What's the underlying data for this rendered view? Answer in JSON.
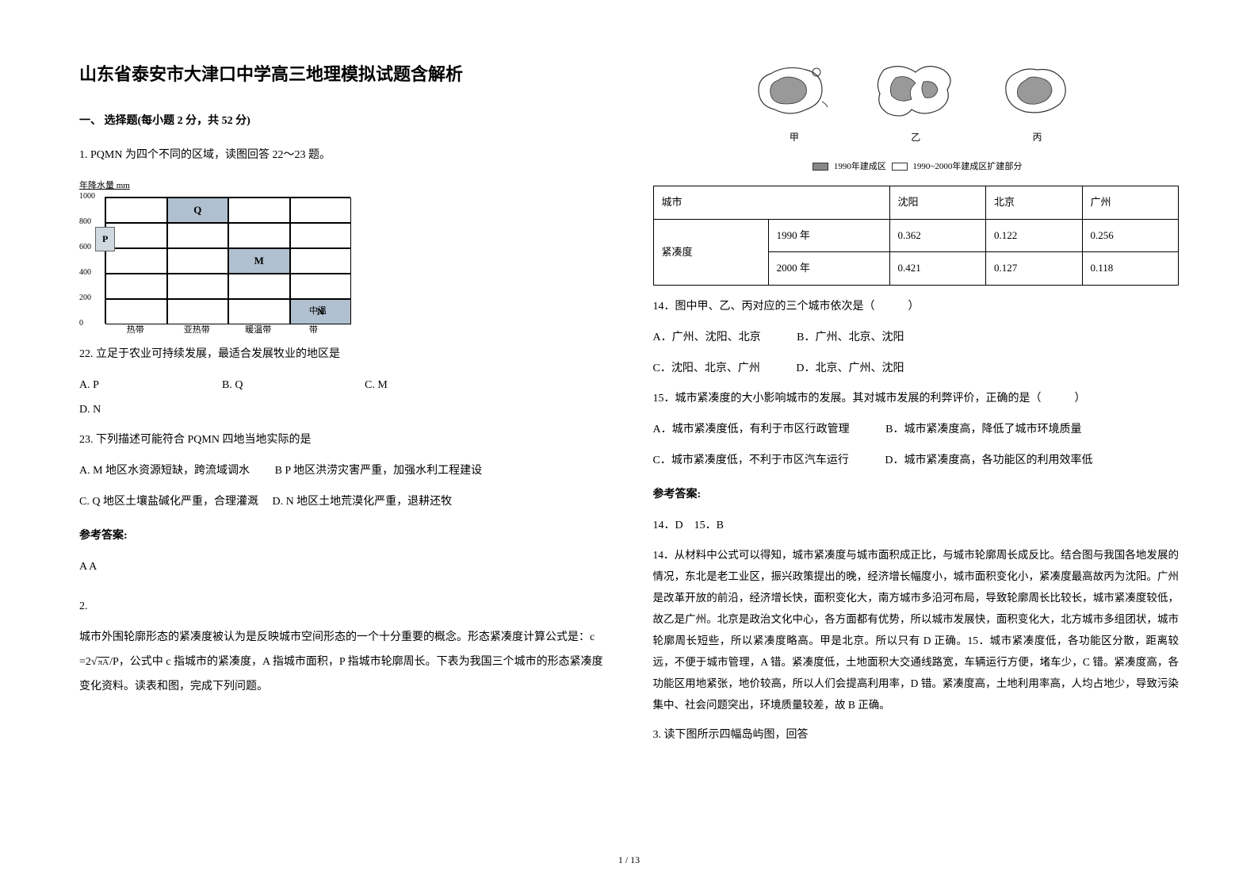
{
  "title": "山东省泰安市大津口中学高三地理模拟试题含解析",
  "section1_header": "一、 选择题(每小题 2 分，共 52 分)",
  "q1_intro": "1. PQMN 为四个不同的区域，读图回答 22～23 题。",
  "chart": {
    "y_title": "年降水量 mm",
    "y_ticks": [
      "0",
      "200",
      "400",
      "600",
      "800",
      "1000"
    ],
    "x_ticks": [
      "热带",
      "亚热带",
      "暖温带",
      "中温带"
    ],
    "cells": {
      "P": {
        "row": 3,
        "col": 0
      },
      "Q": {
        "row": 4,
        "col": 1
      },
      "M": {
        "row": 2,
        "col": 2
      },
      "N": {
        "row": 0,
        "col": 3
      }
    },
    "cell_bg": "#b0c0d0",
    "border_color": "#000000"
  },
  "q22": {
    "text": "22. 立足于农业可持续发展，最适合发展牧业的地区是",
    "opts": {
      "A": "A. P",
      "B": "B. Q",
      "C": "C. M",
      "D": "D. N"
    }
  },
  "q23": {
    "text": "23. 下列描述可能符合 PQMN 四地当地实际的是",
    "A": "A. M 地区水资源短缺，跨流域调水",
    "B": "B P 地区洪涝灾害严重，加强水利工程建设",
    "C": "C. Q 地区土壤盐碱化严重，合理灌溉",
    "D": "D. N 地区土地荒漠化严重，退耕还牧"
  },
  "answer_label": "参考答案:",
  "q1_answer": "A A",
  "q2_intro_num": "2.",
  "q2_intro": "城市外围轮廓形态的紧凑度被认为是反映城市空间形态的一个十分重要的概念。形态紧凑度计算公式是：c =2√",
  "q2_intro_sup": "πA",
  "q2_intro_tail": "/P，公式中 c 指城市的紧凑度，A 指城市面积，P 指城市轮廓周长。下表为我国三个城市的形态紧凑度变化资料。读表和图，完成下列问题。",
  "maps": {
    "labels": [
      "甲",
      "乙",
      "丙"
    ],
    "legend_dark": "1990年建成区",
    "legend_light": "1990~2000年建成区扩建部分"
  },
  "table": {
    "headers": [
      "城市",
      "",
      "沈阳",
      "北京",
      "广州"
    ],
    "rows": [
      [
        "紧凑度",
        "1990 年",
        "0.362",
        "0.122",
        "0.256"
      ],
      [
        "",
        "2000 年",
        "0.421",
        "0.127",
        "0.118"
      ]
    ]
  },
  "q14": {
    "text": "14．图中甲、乙、丙对应的三个城市依次是（　　　）",
    "A": "A．广州、沈阳、北京",
    "B": "B．广州、北京、沈阳",
    "C": "C．沈阳、北京、广州",
    "D": "D．北京、广州、沈阳"
  },
  "q15": {
    "text": "15．城市紧凑度的大小影响城市的发展。其对城市发展的利弊评价，正确的是（　　　）",
    "A": "A．城市紧凑度低，有利于市区行政管理",
    "B": "B．城市紧凑度高，降低了城市环境质量",
    "C": "C．城市紧凑度低，不利于市区汽车运行",
    "D": "D．城市紧凑度高，各功能区的利用效率低"
  },
  "q2_answer": "14．D　15．B",
  "explanation": "14．从材料中公式可以得知，城市紧凑度与城市面积成正比，与城市轮廓周长成反比。结合图与我国各地发展的情况，东北是老工业区，振兴政策提出的晚，经济增长幅度小，城市面积变化小，紧凑度最高故丙为沈阳。广州是改革开放的前沿，经济增长快，面积变化大，南方城市多沿河布局，导致轮廓周长比较长，城市紧凑度较低，故乙是广州。北京是政治文化中心，各方面都有优势，所以城市发展快，面积变化大，北方城市多组团状，城市轮廓周长短些，所以紧凑度略高。甲是北京。所以只有 D 正确。15．城市紧凑度低，各功能区分散，距离较远，不便于城市管理，A 错。紧凑度低，土地面积大交通线路宽，车辆运行方便，堵车少，C 错。紧凑度高，各功能区用地紧张，地价较高，所以人们会提高利用率，D 错。紧凑度高，土地利用率高，人均占地少，导致污染集中、社会问题突出，环境质量较差，故 B 正确。",
  "q3_intro": "3. 读下图所示四幅岛屿图，回答",
  "page_number": "1 / 13"
}
